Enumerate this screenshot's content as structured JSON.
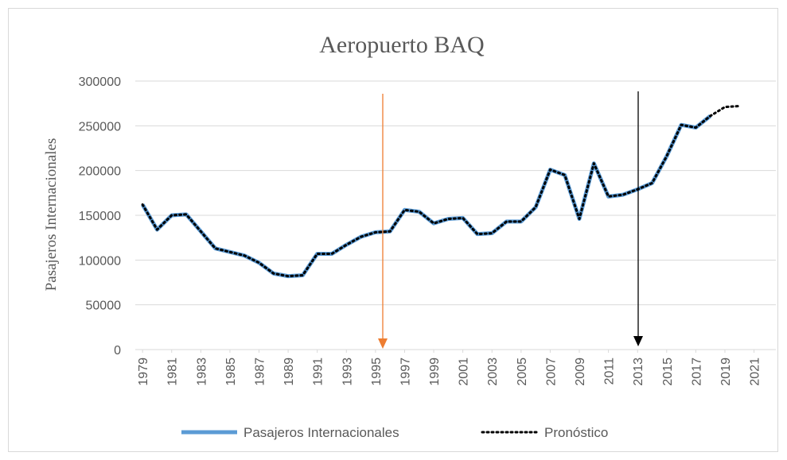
{
  "chart_data": {
    "type": "line",
    "title": "Aeropuerto BAQ",
    "y_label": "Pasajeros Internacionales",
    "x": [
      1979,
      1980,
      1981,
      1982,
      1983,
      1984,
      1985,
      1986,
      1987,
      1988,
      1989,
      1990,
      1991,
      1992,
      1993,
      1994,
      1995,
      1996,
      1997,
      1998,
      1999,
      2000,
      2001,
      2002,
      2003,
      2004,
      2005,
      2006,
      2007,
      2008,
      2009,
      2010,
      2011,
      2012,
      2013,
      2014,
      2015,
      2016,
      2017,
      2018,
      2019,
      2020
    ],
    "series": [
      {
        "name": "Pasajeros Internacionales",
        "color": "#5b9bd5",
        "style": "solid",
        "values": [
          162000,
          134000,
          150000,
          151000,
          132000,
          113000,
          109000,
          105000,
          97000,
          85000,
          82000,
          83000,
          107000,
          107000,
          117000,
          126000,
          131000,
          132000,
          156000,
          154000,
          141000,
          146000,
          147000,
          129000,
          130000,
          143000,
          143000,
          159000,
          201000,
          195000,
          146000,
          208000,
          171000,
          173000,
          179000,
          186000,
          216000,
          251000,
          248000,
          261000,
          null,
          null
        ]
      },
      {
        "name": "Pronóstico",
        "color": "#000000",
        "style": "dotted",
        "values": [
          162000,
          134000,
          150000,
          151000,
          132000,
          113000,
          109000,
          105000,
          97000,
          85000,
          82000,
          83000,
          107000,
          107000,
          117000,
          126000,
          131000,
          132000,
          156000,
          154000,
          141000,
          146000,
          147000,
          129000,
          130000,
          143000,
          143000,
          159000,
          201000,
          195000,
          146000,
          208000,
          171000,
          173000,
          179000,
          186000,
          216000,
          251000,
          248000,
          261000,
          271000,
          272000
        ]
      }
    ],
    "xlim": [
      1978.5,
      2022.5
    ],
    "xticks": [
      1979,
      1981,
      1983,
      1985,
      1987,
      1989,
      1991,
      1993,
      1995,
      1997,
      1999,
      2001,
      2003,
      2005,
      2007,
      2009,
      2011,
      2013,
      2015,
      2017,
      2019,
      2021
    ],
    "ylim": [
      0,
      300000
    ],
    "yticks": [
      0,
      50000,
      100000,
      150000,
      200000,
      250000,
      300000
    ],
    "grid": true
  }
}
